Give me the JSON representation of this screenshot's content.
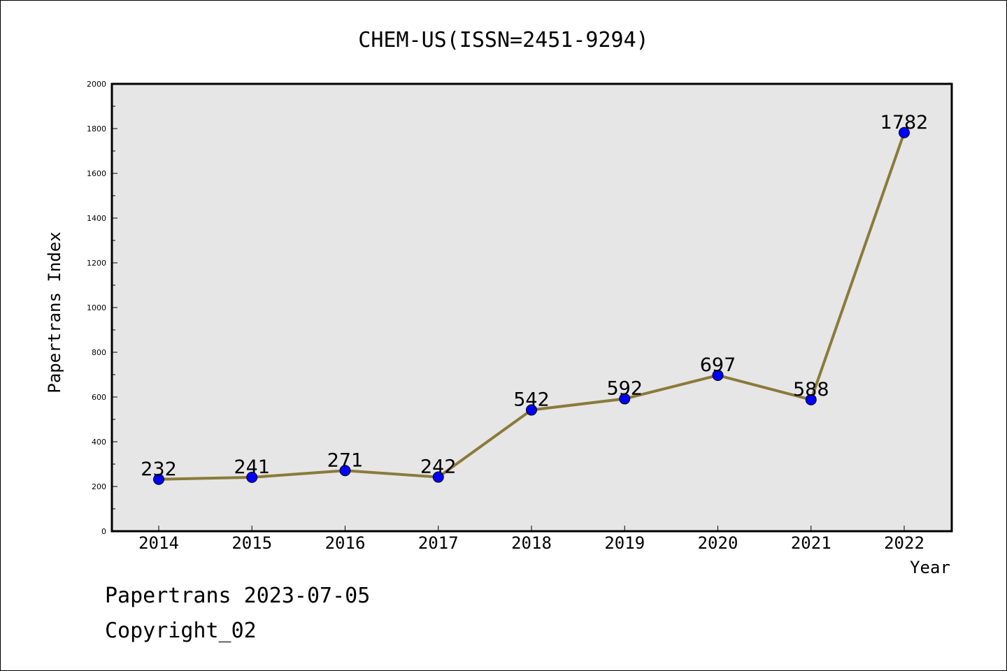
{
  "chart_data": {
    "type": "line",
    "title": "CHEM-US(ISSN=2451-9294)",
    "xlabel": "Year",
    "ylabel": "Papertrans Index",
    "categories": [
      "2014",
      "2015",
      "2016",
      "2017",
      "2018",
      "2019",
      "2020",
      "2021",
      "2022"
    ],
    "series": [
      {
        "values": [
          232,
          241,
          271,
          242,
          542,
          592,
          697,
          588,
          1782
        ]
      }
    ],
    "ylim": [
      0,
      2000
    ],
    "yticks": [
      0,
      200,
      400,
      600,
      800,
      1000,
      1200,
      1400,
      1600,
      1800,
      2000
    ],
    "grid": false,
    "colors": {
      "line": "#8b7a3a",
      "marker": "#0000ff",
      "plot_bg": "#e6e6e6"
    }
  },
  "footer": {
    "line1": "Papertrans 2023-07-05",
    "line2": "Copyright_02"
  }
}
